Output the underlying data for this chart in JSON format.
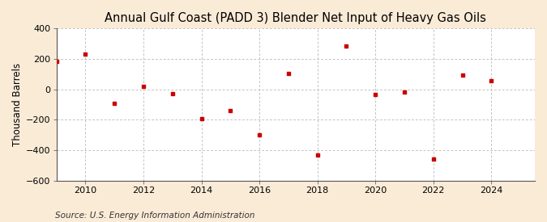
{
  "title": "Annual Gulf Coast (PADD 3) Blender Net Input of Heavy Gas Oils",
  "ylabel": "Thousand Barrels",
  "source": "Source: U.S. Energy Information Administration",
  "background_color": "#faebd7",
  "plot_background_color": "#ffffff",
  "grid_color": "#aaaaaa",
  "marker_color": "#cc0000",
  "years": [
    2009,
    2010,
    2011,
    2012,
    2013,
    2014,
    2015,
    2016,
    2017,
    2018,
    2019,
    2020,
    2021,
    2022,
    2023,
    2024
  ],
  "values": [
    185,
    230,
    -90,
    20,
    -30,
    -190,
    -140,
    -300,
    105,
    -430,
    285,
    -35,
    -15,
    -460,
    95,
    55
  ],
  "xlim": [
    2009.0,
    2025.5
  ],
  "ylim": [
    -600,
    400
  ],
  "yticks": [
    -600,
    -400,
    -200,
    0,
    200,
    400
  ],
  "xticks": [
    2010,
    2012,
    2014,
    2016,
    2018,
    2020,
    2022,
    2024
  ],
  "title_fontsize": 10.5,
  "label_fontsize": 8.5,
  "tick_fontsize": 8,
  "source_fontsize": 7.5
}
